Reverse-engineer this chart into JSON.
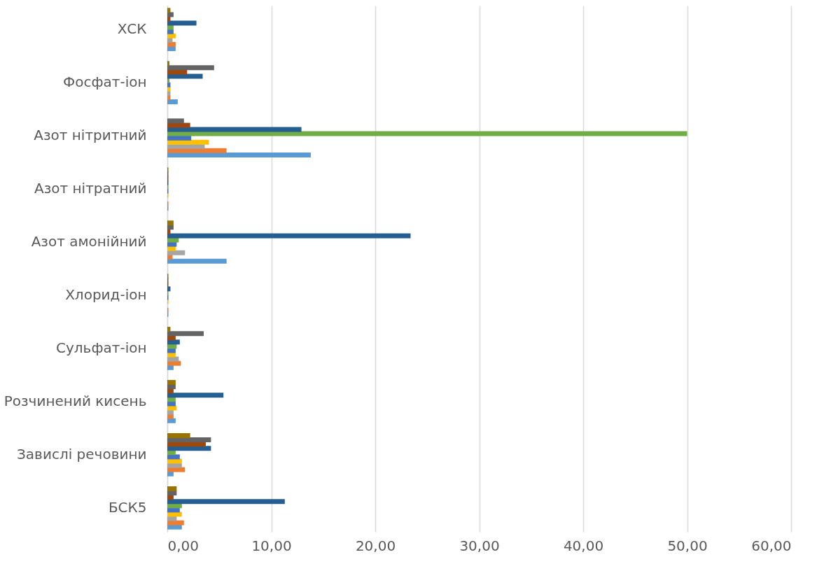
{
  "chart_data": {
    "type": "bar",
    "orientation": "horizontal",
    "grid": "x",
    "legend": false,
    "categories": [
      "ХСК",
      "Фосфат-іон",
      "Азот нітритний",
      "Азот нітратний",
      "Азот амонійний",
      "Хлорид-іон",
      "Сульфат-іон",
      "Розчинений кисень",
      "Завислі речовини",
      "БСК5"
    ],
    "xlim": [
      0,
      60
    ],
    "xticks": [
      {
        "value": 0,
        "label": "0,00"
      },
      {
        "value": 10,
        "label": "10,00"
      },
      {
        "value": 20,
        "label": "20,00"
      },
      {
        "value": 30,
        "label": "30,00"
      },
      {
        "value": 40,
        "label": "40,00"
      },
      {
        "value": 50,
        "label": "50,00"
      },
      {
        "value": 60,
        "label": "60,00"
      }
    ],
    "series": [
      {
        "color": "#5b9bd5",
        "values": [
          0.8,
          1.0,
          13.8,
          0.1,
          5.7,
          0.1,
          0.6,
          0.8,
          0.6,
          1.4
        ]
      },
      {
        "color": "#ed7d31",
        "values": [
          0.8,
          0.3,
          5.7,
          0.1,
          0.5,
          0.1,
          1.3,
          0.6,
          1.7,
          1.6
        ]
      },
      {
        "color": "#a5a5a5",
        "values": [
          0.5,
          0.3,
          3.6,
          null,
          1.7,
          null,
          1.1,
          0.6,
          1.4,
          0.9
        ]
      },
      {
        "color": "#ffc000",
        "values": [
          0.8,
          0.3,
          4.0,
          0.1,
          0.8,
          0.1,
          0.8,
          0.9,
          1.4,
          1.4
        ]
      },
      {
        "color": "#4472c4",
        "values": [
          0.6,
          0.3,
          2.3,
          0.1,
          0.9,
          0.1,
          0.8,
          0.8,
          1.2,
          1.2
        ]
      },
      {
        "color": "#70ad47",
        "values": [
          0.6,
          0.2,
          50.0,
          0.1,
          1.1,
          0.1,
          0.9,
          0.8,
          0.8,
          1.4
        ]
      },
      {
        "color": "#255e91",
        "values": [
          2.8,
          3.4,
          12.9,
          0.1,
          23.4,
          0.3,
          1.2,
          5.4,
          4.2,
          11.3
        ]
      },
      {
        "color": "#9e480e",
        "values": [
          0.3,
          1.9,
          2.2,
          0.1,
          0.3,
          0.1,
          0.8,
          0.6,
          3.7,
          0.6
        ]
      },
      {
        "color": "#636363",
        "values": [
          0.6,
          4.5,
          1.6,
          0.1,
          0.6,
          0.1,
          3.5,
          0.8,
          4.2,
          0.9
        ]
      },
      {
        "color": "#997300",
        "values": [
          0.3,
          0.2,
          0.0,
          0.1,
          0.6,
          0.1,
          0.3,
          0.8,
          2.2,
          0.9
        ]
      }
    ]
  }
}
